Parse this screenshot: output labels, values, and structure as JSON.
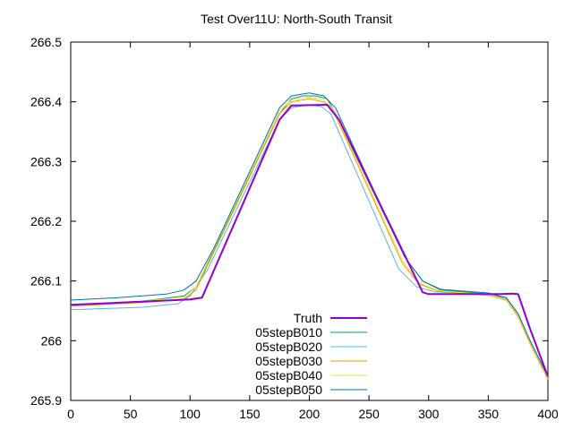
{
  "chart_data": {
    "type": "line",
    "title": "Test Over11U: North-South Transit",
    "xlabel": "",
    "ylabel": "",
    "xlim": [
      0,
      400
    ],
    "ylim": [
      265.9,
      266.5
    ],
    "x_ticks": [
      0,
      50,
      100,
      150,
      200,
      250,
      300,
      350,
      400
    ],
    "y_ticks": [
      265.9,
      266,
      266.1,
      266.2,
      266.3,
      266.4,
      266.5
    ],
    "x_tick_labels": [
      "0",
      "50",
      "100",
      "150",
      "200",
      "250",
      "300",
      "350",
      "400"
    ],
    "y_tick_labels": [
      "265.9",
      "266",
      "266.1",
      "266.2",
      "266.3",
      "266.4",
      "266.5"
    ],
    "grid": false,
    "legend_position": "bottom-center",
    "series": [
      {
        "name": "Truth",
        "color": "#9400d3",
        "x": [
          0,
          100,
          110,
          175,
          185,
          215,
          225,
          295,
          300,
          360,
          370,
          375,
          385,
          400
        ],
        "y": [
          266.06,
          266.069,
          266.072,
          266.37,
          266.394,
          266.395,
          266.37,
          266.081,
          266.078,
          266.078,
          266.079,
          266.078,
          266.02,
          265.94
        ]
      },
      {
        "name": "05stepB010",
        "color": "#009e73",
        "x": [
          0,
          60,
          95,
          105,
          120,
          175,
          185,
          195,
          205,
          215,
          222,
          280,
          295,
          310,
          350,
          365,
          375,
          385,
          400
        ],
        "y": [
          266.06,
          266.066,
          266.075,
          266.09,
          266.15,
          266.38,
          266.405,
          266.41,
          266.41,
          266.405,
          266.38,
          266.14,
          266.1,
          266.085,
          266.078,
          266.072,
          266.045,
          266.0,
          265.94
        ]
      },
      {
        "name": "05stepB020",
        "color": "#56b4e9",
        "x": [
          0,
          60,
          90,
          100,
          115,
          175,
          185,
          200,
          210,
          218,
          275,
          290,
          305,
          350,
          365,
          375,
          385,
          400
        ],
        "y": [
          266.052,
          266.056,
          266.062,
          266.075,
          266.12,
          266.37,
          266.39,
          266.395,
          266.392,
          266.38,
          266.12,
          266.09,
          266.082,
          266.078,
          266.07,
          266.045,
          266.0,
          265.94
        ]
      },
      {
        "name": "05stepB030",
        "color": "#e69f00",
        "x": [
          0,
          60,
          95,
          105,
          118,
          175,
          185,
          200,
          212,
          220,
          278,
          292,
          308,
          350,
          365,
          375,
          385,
          400
        ],
        "y": [
          266.058,
          266.064,
          266.07,
          266.085,
          266.14,
          266.38,
          266.4,
          266.405,
          266.4,
          266.385,
          266.13,
          266.095,
          266.083,
          266.076,
          266.068,
          266.04,
          265.995,
          265.935
        ]
      },
      {
        "name": "05stepB040",
        "color": "#f0e442",
        "x": [
          0,
          60,
          95,
          105,
          118,
          175,
          185,
          200,
          212,
          220,
          278,
          292,
          308,
          350,
          365,
          375,
          385,
          400
        ],
        "y": [
          266.06,
          266.066,
          266.073,
          266.09,
          266.145,
          266.385,
          266.403,
          266.408,
          266.403,
          266.388,
          266.135,
          266.097,
          266.084,
          266.077,
          266.069,
          266.042,
          265.997,
          265.937
        ]
      },
      {
        "name": "05stepB050",
        "color": "#0072b2",
        "x": [
          0,
          40,
          80,
          95,
          105,
          120,
          175,
          185,
          200,
          212,
          222,
          280,
          295,
          310,
          350,
          365,
          375,
          385,
          400
        ],
        "y": [
          266.068,
          266.072,
          266.078,
          266.085,
          266.1,
          266.155,
          266.39,
          266.41,
          266.415,
          266.41,
          266.39,
          266.14,
          266.1,
          266.086,
          266.08,
          266.072,
          266.045,
          266.0,
          265.94
        ]
      }
    ]
  }
}
